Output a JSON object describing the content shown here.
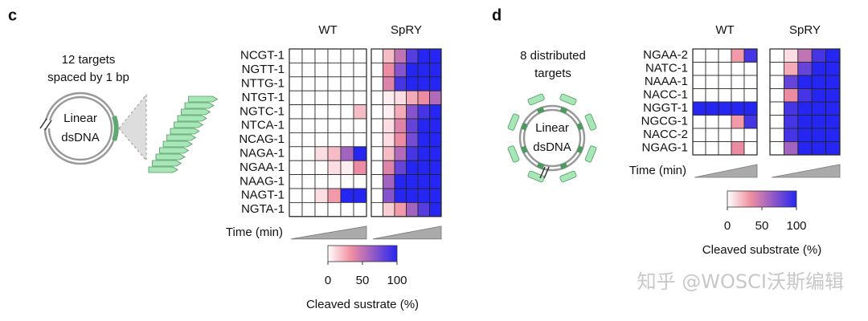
{
  "panels": [
    {
      "letter": "c",
      "caption": [
        "12 targets",
        "spaced by 1 bp"
      ],
      "dna_label": [
        "Linear",
        "dsDNA"
      ],
      "colorbar": {
        "zlim": [
          0,
          100
        ],
        "ticks": [
          0,
          50,
          100
        ],
        "label": "Cleaved sustrate (%)",
        "colors": [
          "#ffffff",
          "#f08fa0",
          "#9058c8",
          "#2626f2"
        ]
      }
    },
    {
      "letter": "d",
      "caption": [
        "8 distributed",
        "targets"
      ],
      "dna_label": [
        "Linear",
        "dsDNA"
      ],
      "colorbar": {
        "zlim": [
          0,
          100
        ],
        "ticks": [
          0,
          50,
          100
        ],
        "label": "Cleaved substrate (%)",
        "colors": [
          "#ffffff",
          "#f08fa0",
          "#9058c8",
          "#2626f2"
        ]
      }
    }
  ],
  "chart_data": [
    {
      "type": "heatmap",
      "title": "WT",
      "x_label": "Time (min)",
      "y_categories": [
        "NCGT-1",
        "NGTT-1",
        "NTTG-1",
        "NTGT-1",
        "NGTC-1",
        "NTCA-1",
        "NCAG-1",
        "NAGA-1",
        "NGAA-1",
        "NAAG-1",
        "NAGT-1",
        "NGTA-1"
      ],
      "values": [
        [
          0,
          0,
          0,
          0,
          0,
          0
        ],
        [
          0,
          0,
          0,
          0,
          0,
          0
        ],
        [
          0,
          0,
          0,
          0,
          0,
          0
        ],
        [
          0,
          0,
          0,
          0,
          0,
          0
        ],
        [
          0,
          0,
          0,
          0,
          0,
          20
        ],
        [
          0,
          0,
          0,
          0,
          0,
          0
        ],
        [
          0,
          0,
          0,
          0,
          0,
          0
        ],
        [
          0,
          0,
          10,
          20,
          60,
          100
        ],
        [
          0,
          0,
          0,
          10,
          5,
          35
        ],
        [
          0,
          0,
          0,
          0,
          0,
          0
        ],
        [
          0,
          0,
          10,
          30,
          100,
          100
        ],
        [
          0,
          0,
          0,
          0,
          0,
          0
        ]
      ]
    },
    {
      "type": "heatmap",
      "title": "SpRY",
      "values": [
        [
          0,
          20,
          50,
          85,
          100,
          100
        ],
        [
          0,
          35,
          70,
          100,
          100,
          100
        ],
        [
          0,
          40,
          90,
          100,
          100,
          100
        ],
        [
          0,
          5,
          10,
          25,
          35,
          55
        ],
        [
          0,
          5,
          25,
          70,
          90,
          100
        ],
        [
          0,
          10,
          40,
          80,
          100,
          100
        ],
        [
          0,
          10,
          35,
          75,
          100,
          100
        ],
        [
          0,
          20,
          55,
          90,
          100,
          100
        ],
        [
          0,
          40,
          80,
          100,
          100,
          100
        ],
        [
          0,
          60,
          100,
          100,
          100,
          100
        ],
        [
          0,
          70,
          100,
          100,
          100,
          100
        ],
        [
          0,
          15,
          30,
          60,
          85,
          100
        ]
      ]
    },
    {
      "type": "heatmap",
      "title": "WT",
      "x_label": "Time (min)",
      "y_categories": [
        "NGAA-2",
        "NATC-1",
        "NAAA-1",
        "NACC-1",
        "NGGT-1",
        "NGCG-1",
        "NACC-2",
        "NGAG-1"
      ],
      "values": [
        [
          0,
          0,
          0,
          30,
          90
        ],
        [
          0,
          0,
          0,
          0,
          0
        ],
        [
          0,
          0,
          0,
          0,
          0
        ],
        [
          0,
          0,
          0,
          0,
          0
        ],
        [
          100,
          100,
          100,
          100,
          100
        ],
        [
          0,
          0,
          0,
          30,
          90
        ],
        [
          0,
          0,
          0,
          0,
          0
        ],
        [
          0,
          0,
          0,
          35,
          0
        ]
      ]
    },
    {
      "type": "heatmap",
      "title": "SpRY",
      "values": [
        [
          0,
          10,
          50,
          90,
          100
        ],
        [
          0,
          25,
          80,
          100,
          100
        ],
        [
          0,
          80,
          100,
          100,
          100
        ],
        [
          0,
          35,
          90,
          100,
          100
        ],
        [
          0,
          90,
          100,
          100,
          100
        ],
        [
          0,
          90,
          100,
          100,
          100
        ],
        [
          0,
          90,
          100,
          100,
          100
        ],
        [
          0,
          60,
          100,
          100,
          100
        ]
      ]
    }
  ],
  "watermark": "知乎 @WOSCI沃斯编辑"
}
